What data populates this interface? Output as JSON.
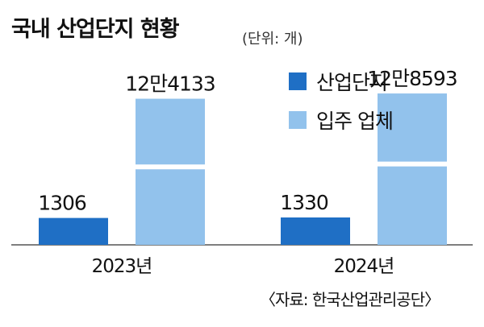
{
  "chart_data": {
    "type": "bar",
    "title": "국내 산업단지 현황",
    "unit": "(단위: 개)",
    "categories": [
      "2023년",
      "2024년"
    ],
    "series": [
      {
        "name": "산업단지",
        "values": [
          1306,
          1330
        ],
        "labels": [
          "1306",
          "1330"
        ],
        "color": "#1f6fc5"
      },
      {
        "name": "입주 업체",
        "values": [
          124133,
          128593
        ],
        "labels": [
          "12만4133",
          "12만8593"
        ],
        "color": "#92c2ec"
      }
    ],
    "axis_break": true,
    "grid": false,
    "legend": "top-right",
    "source": "〈자료: 한국산업관리공단〉"
  }
}
